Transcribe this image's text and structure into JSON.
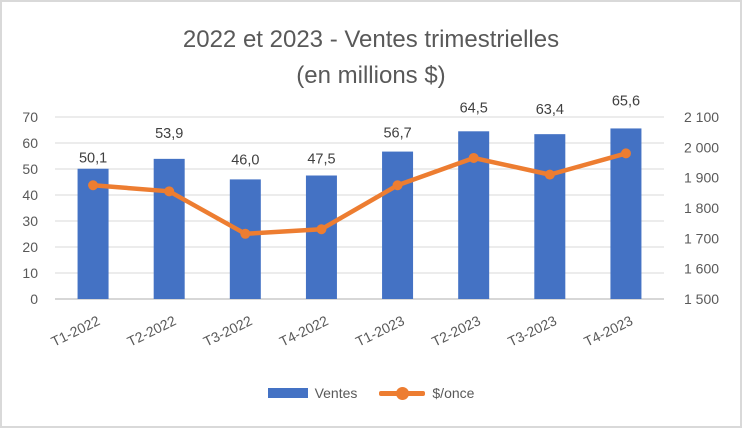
{
  "title": {
    "line1": "2022 et 2023 - Ventes trimestrielles",
    "line2": "(en millions $)"
  },
  "legend": {
    "position": "bottom",
    "items": [
      {
        "label": "Ventes",
        "swatch": "bar-swatch",
        "color": "#4472C4"
      },
      {
        "label": "$/once",
        "swatch": "line-marker-swatch",
        "color": "#ED7D31"
      }
    ]
  },
  "colors": {
    "bar_blue": "#4472C4",
    "line_orange": "#ED7D31",
    "gridline": "#D9D9D9",
    "axis_line": "#BFBFBF",
    "tick_text": "#595959",
    "data_label_text": "#404040",
    "title_text": "#595959",
    "frame_border": "#D9D9D9",
    "background": "#FFFFFF"
  },
  "chart_data": {
    "type": "combo-bar-line",
    "title": "2022 et 2023 - Ventes trimestrielles (en millions $)",
    "categories": [
      "T1-2022",
      "T2-2022",
      "T3-2022",
      "T4-2022",
      "T1-2023",
      "T2-2023",
      "T3-2023",
      "T4-2023"
    ],
    "series": [
      {
        "name": "Ventes",
        "type": "bar",
        "axis": "left",
        "color": "#4472C4",
        "values": [
          50.1,
          53.9,
          46.0,
          47.5,
          56.7,
          64.5,
          63.4,
          65.6
        ],
        "data_labels": [
          "50,1",
          "53,9",
          "46,0",
          "47,5",
          "56,7",
          "64,5",
          "63,4",
          "65,6"
        ]
      },
      {
        "name": "$/once",
        "type": "line",
        "axis": "right",
        "color": "#ED7D31",
        "values": [
          1875,
          1855,
          1715,
          1730,
          1875,
          1965,
          1910,
          1980
        ],
        "values_note": "estimated from gridlines; no data labels shown for this series"
      }
    ],
    "left_axis": {
      "min": 0,
      "max": 70,
      "step": 10,
      "tick_labels": [
        "0",
        "10",
        "20",
        "30",
        "40",
        "50",
        "60",
        "70"
      ]
    },
    "right_axis": {
      "min": 1500,
      "max": 2100,
      "step": 100,
      "tick_labels": [
        "1 500",
        "1 600",
        "1 700",
        "1 800",
        "1 900",
        "2 000",
        "2 100"
      ]
    },
    "grid": true,
    "legend_position": "bottom"
  }
}
